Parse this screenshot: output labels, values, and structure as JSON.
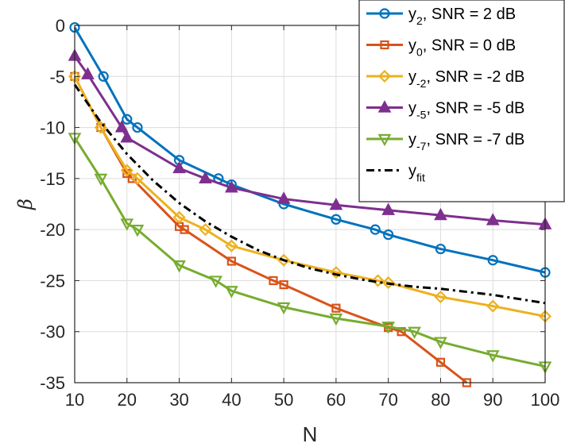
{
  "chart_data": {
    "type": "line",
    "xlabel": "N",
    "ylabel": "β",
    "xlim": [
      10,
      100
    ],
    "ylim": [
      -35,
      0
    ],
    "xticks": [
      10,
      20,
      30,
      40,
      50,
      60,
      70,
      80,
      90,
      100
    ],
    "xtick_labels": [
      "10",
      "20",
      "30",
      "40",
      "50",
      "60",
      "70",
      "80",
      "90",
      "100"
    ],
    "yticks": [
      0,
      -5,
      -10,
      -15,
      -20,
      -25,
      -30,
      -35
    ],
    "ytick_labels": [
      "0",
      "-5",
      "-10",
      "-15",
      "-20",
      "-25",
      "-30",
      "-35"
    ],
    "grid": true,
    "legend_position": "top-right",
    "series": [
      {
        "legend_base": "y",
        "legend_sub": "2",
        "legend_rest": ",  SNR = 2 dB",
        "color": "#0072BD",
        "marker": "circle",
        "dash": "solid",
        "x": [
          10,
          15.5,
          20,
          22,
          30,
          37.5,
          40,
          50,
          60,
          67.5,
          70,
          80,
          90,
          100
        ],
        "y": [
          -0.2,
          -5,
          -9.2,
          -10,
          -13.2,
          -15,
          -15.6,
          -17.5,
          -19,
          -20,
          -20.5,
          -21.9,
          -23,
          -24.2
        ]
      },
      {
        "legend_base": "y",
        "legend_sub": "0",
        "legend_rest": ",  SNR = 0 dB",
        "color": "#D95319",
        "marker": "square",
        "dash": "solid",
        "x": [
          10,
          15,
          20,
          21,
          30,
          31,
          40,
          48,
          50,
          60,
          70,
          72.5,
          80,
          85
        ],
        "y": [
          -5,
          -10,
          -14.5,
          -15,
          -19.7,
          -20,
          -23.1,
          -25,
          -25.4,
          -27.7,
          -29.6,
          -30,
          -33,
          -35
        ]
      },
      {
        "legend_base": "y",
        "legend_sub": "-2",
        "legend_rest": ",  SNR = -2 dB",
        "color": "#EDB120",
        "marker": "diamond",
        "dash": "solid",
        "x": [
          10,
          15,
          20,
          22,
          30,
          35,
          40,
          50,
          60,
          68,
          70,
          80,
          90,
          100
        ],
        "y": [
          -5,
          -10,
          -14.2,
          -15,
          -18.8,
          -20,
          -21.6,
          -23,
          -24.2,
          -25,
          -25.2,
          -26.6,
          -27.5,
          -28.5
        ]
      },
      {
        "legend_base": "y",
        "legend_sub": "-5",
        "legend_rest": ",  SNR = -5 dB",
        "color": "#7E2F8E",
        "marker": "triangle-up",
        "dash": "solid",
        "x": [
          10,
          12.5,
          19,
          20,
          30,
          35,
          40,
          50,
          60,
          70,
          80,
          90,
          100
        ],
        "y": [
          -3,
          -4.8,
          -10,
          -11,
          -14,
          -15,
          -15.9,
          -17,
          -17.6,
          -18.1,
          -18.6,
          -19.1,
          -19.5
        ]
      },
      {
        "legend_base": "y",
        "legend_sub": "-7",
        "legend_rest": ",  SNR = -7 dB",
        "color": "#77AC30",
        "marker": "triangle-down",
        "dash": "solid",
        "x": [
          10,
          15,
          20,
          22,
          30,
          37,
          40,
          50,
          60,
          70,
          75,
          80,
          90,
          100
        ],
        "y": [
          -11,
          -15,
          -19.4,
          -20,
          -23.5,
          -25,
          -26,
          -27.6,
          -28.7,
          -29.5,
          -30,
          -31,
          -32.3,
          -33.4
        ]
      },
      {
        "legend_base": "y",
        "legend_sub": "fit",
        "legend_rest": "",
        "color": "#000000",
        "marker": "none",
        "dash": "dashdot",
        "x": [
          10,
          15,
          20,
          25,
          30,
          35,
          40,
          45,
          50,
          55,
          60,
          65,
          70,
          75,
          80,
          85,
          90,
          95,
          100
        ],
        "y": [
          -5.8,
          -9.5,
          -12.6,
          -15.2,
          -17.4,
          -19.2,
          -20.7,
          -22.0,
          -23.0,
          -23.8,
          -24.4,
          -24.9,
          -25.3,
          -25.6,
          -25.8,
          -26.1,
          -26.4,
          -26.8,
          -27.2
        ]
      }
    ]
  }
}
